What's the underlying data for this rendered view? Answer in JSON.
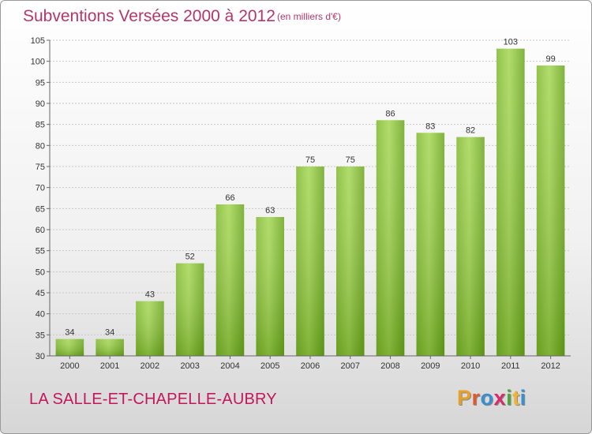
{
  "header": {
    "title": "Subventions Versées 2000 à 2012",
    "subtitle": "(en milliers d'€)"
  },
  "footer": {
    "commune": "LA SALLE-ET-CHAPELLE-AUBRY",
    "logo": "Proxiti"
  },
  "colors": {
    "title": "#b3366b",
    "commune": "#c2185b",
    "bar_top": "#9ccf4a",
    "bar_bottom": "#5e9a14"
  },
  "chart_data": {
    "type": "bar",
    "title": "Subventions Versées 2000 à 2012",
    "subtitle": "(en milliers d'€)",
    "xlabel": "",
    "ylabel": "",
    "categories": [
      "2000",
      "2001",
      "2002",
      "2003",
      "2004",
      "2005",
      "2006",
      "2007",
      "2008",
      "2009",
      "2010",
      "2011",
      "2012"
    ],
    "values": [
      34,
      34,
      43,
      52,
      66,
      63,
      75,
      75,
      86,
      83,
      82,
      103,
      99
    ],
    "ylim": [
      30,
      105
    ],
    "yticks": [
      30,
      35,
      40,
      45,
      50,
      55,
      60,
      65,
      70,
      75,
      80,
      85,
      90,
      95,
      100,
      105
    ],
    "grid": true,
    "legend": "none"
  }
}
